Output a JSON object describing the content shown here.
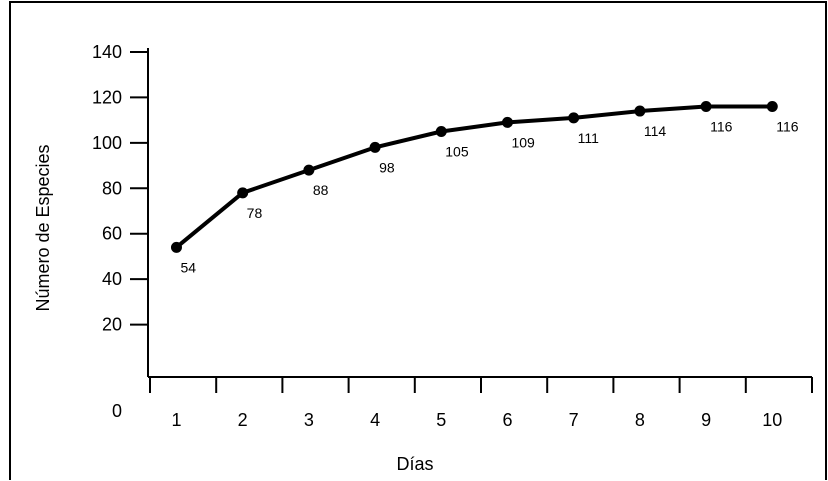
{
  "chart_data": {
    "type": "line",
    "title": "",
    "xlabel": "Días",
    "ylabel": "Número de Especies",
    "x": [
      1,
      2,
      3,
      4,
      5,
      6,
      7,
      8,
      9,
      10
    ],
    "series": [
      {
        "values": [
          54,
          78,
          88,
          98,
          105,
          109,
          111,
          114,
          116,
          116
        ]
      }
    ],
    "data_labels": [
      "54",
      "78",
      "88",
      "98",
      "105",
      "109",
      "111",
      "114",
      "116",
      "116"
    ],
    "y_ticks": [
      0,
      20,
      40,
      60,
      80,
      100,
      120,
      140
    ],
    "y_tick_labels": [
      "0",
      "20",
      "40",
      "60",
      "80",
      "100",
      "120",
      "140"
    ],
    "x_tick_labels": [
      "1",
      "2",
      "3",
      "4",
      "5",
      "6",
      "7",
      "8",
      "9",
      "10"
    ],
    "ylim": [
      0,
      140
    ],
    "xlim": [
      0.6,
      10.6
    ],
    "grid": false,
    "legend": "none",
    "colors": {
      "line": "#000000",
      "background": "#ffffff"
    }
  }
}
